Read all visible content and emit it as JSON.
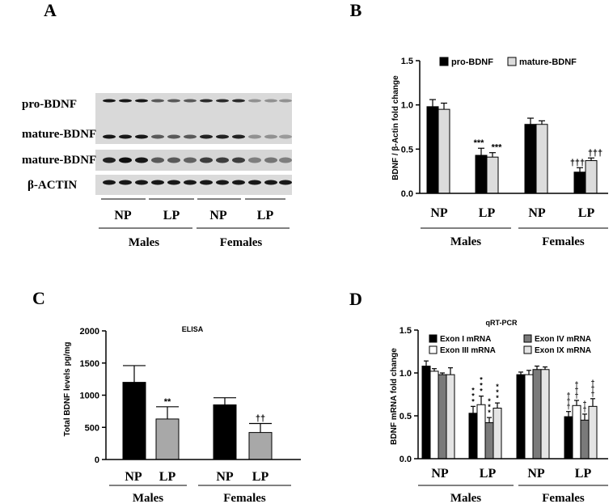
{
  "panels": {
    "A": "A",
    "B": "B",
    "C": "C",
    "D": "D"
  },
  "blot": {
    "row_labels": [
      "pro-BDNF",
      "mature-BDNF",
      "mature-BDNF",
      "β-ACTIN"
    ],
    "lane_groups": [
      "NP",
      "LP",
      "NP",
      "LP"
    ],
    "sex_groups": [
      "Males",
      "Females"
    ],
    "intensity": {
      "pro_bdnf": [
        0.95,
        0.95,
        0.95,
        0.6,
        0.6,
        0.6,
        0.85,
        0.85,
        0.85,
        0.3,
        0.3,
        0.3
      ],
      "mature_top": [
        0.95,
        0.95,
        0.95,
        0.6,
        0.6,
        0.6,
        0.9,
        0.9,
        0.9,
        0.3,
        0.3,
        0.25
      ],
      "mature_bottom": [
        0.9,
        1.0,
        0.95,
        0.6,
        0.6,
        0.55,
        0.75,
        0.75,
        0.75,
        0.4,
        0.45,
        0.4
      ],
      "actin": [
        0.95,
        0.95,
        0.95,
        0.95,
        0.95,
        0.95,
        0.95,
        0.95,
        0.95,
        0.95,
        0.95,
        0.95
      ]
    }
  },
  "chart_data": [
    {
      "panel": "B",
      "type": "bar",
      "title": "",
      "ylabel": "BDNF / β-Actin fold change",
      "ylim": [
        0,
        1.5
      ],
      "yticks": [
        "0.0",
        "0.5",
        "1.0",
        "1.5"
      ],
      "categories": [
        "NP",
        "LP",
        "NP",
        "LP"
      ],
      "groups": [
        "Males",
        "Females"
      ],
      "legend_position": "top",
      "series": [
        {
          "name": "pro-BDNF",
          "color": "#000000",
          "values": [
            0.98,
            0.43,
            0.78,
            0.24
          ],
          "errors": [
            0.08,
            0.08,
            0.07,
            0.05
          ],
          "sig": [
            "",
            "***",
            "",
            "†††"
          ]
        },
        {
          "name": "mature-BDNF",
          "color": "#dcdcdc",
          "values": [
            0.95,
            0.41,
            0.78,
            0.37
          ],
          "errors": [
            0.07,
            0.05,
            0.04,
            0.03
          ],
          "sig": [
            "",
            "***",
            "",
            "†††"
          ]
        }
      ]
    },
    {
      "panel": "C",
      "type": "bar",
      "title": "ELISA",
      "ylabel": "Total BDNF levels pg/mg",
      "ylim": [
        0,
        2000
      ],
      "yticks": [
        "0",
        "500",
        "1000",
        "1500",
        "2000"
      ],
      "categories": [
        "NP",
        "LP",
        "NP",
        "LP"
      ],
      "groups": [
        "Males",
        "Females"
      ],
      "series": [
        {
          "name": "",
          "values": [
            1200,
            630,
            850,
            420
          ],
          "errors": [
            260,
            190,
            110,
            140
          ],
          "colors": [
            "#000000",
            "#a8a8a8",
            "#000000",
            "#a8a8a8"
          ],
          "sig": [
            "",
            "**",
            "",
            "††"
          ]
        }
      ]
    },
    {
      "panel": "D",
      "type": "bar",
      "title": "qRT-PCR",
      "ylabel": "BDNF mRNA fold change",
      "ylim": [
        0,
        1.5
      ],
      "yticks": [
        "0.0",
        "0.5",
        "1.0",
        "1.5"
      ],
      "categories": [
        "NP",
        "LP",
        "NP",
        "LP"
      ],
      "groups": [
        "Males",
        "Females"
      ],
      "legend_position": "top",
      "series": [
        {
          "name": "Exon I mRNA",
          "color": "#000000",
          "values": [
            1.08,
            0.53,
            0.98,
            0.49
          ],
          "errors": [
            0.06,
            0.08,
            0.03,
            0.06
          ],
          "sig": [
            "",
            "***",
            "",
            "†††"
          ]
        },
        {
          "name": "Exon III mRNA",
          "color": "#ffffff",
          "values": [
            1.02,
            0.63,
            0.98,
            0.62
          ],
          "errors": [
            0.03,
            0.1,
            0.05,
            0.06
          ],
          "sig": [
            "",
            "***",
            "",
            "†††"
          ]
        },
        {
          "name": "Exon IV mRNA",
          "color": "#7a7a7a",
          "values": [
            0.98,
            0.42,
            1.04,
            0.45
          ],
          "errors": [
            0.02,
            0.06,
            0.04,
            0.07
          ],
          "sig": [
            "",
            "***",
            "",
            "††"
          ]
        },
        {
          "name": "Exon IX mRNA",
          "color": "#e4e4e4",
          "values": [
            0.98,
            0.59,
            1.04,
            0.61
          ],
          "errors": [
            0.08,
            0.06,
            0.03,
            0.09
          ],
          "sig": [
            "",
            "***",
            "",
            "†††"
          ]
        }
      ]
    }
  ]
}
